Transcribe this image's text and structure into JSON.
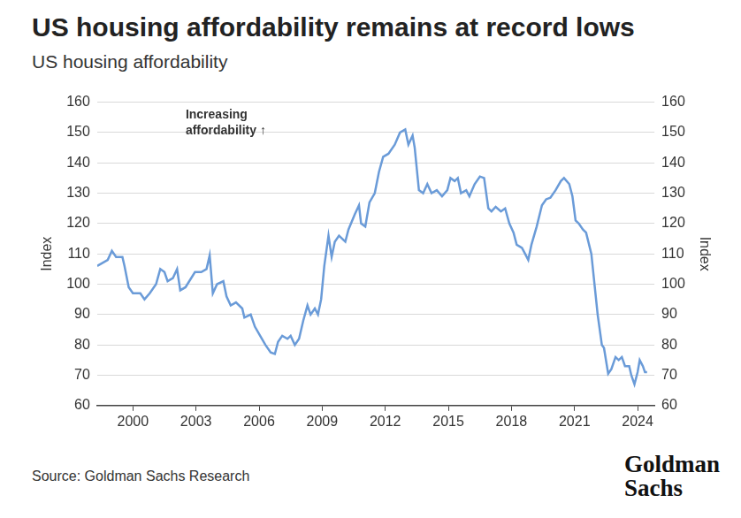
{
  "chart_data": {
    "type": "line",
    "title": "US housing affordability remains at record lows",
    "subtitle": "US housing affordability",
    "annotation": [
      "Increasing",
      "affordability ↑"
    ],
    "source": "Source: Goldman Sachs Research",
    "logo": [
      "Goldman",
      "Sachs"
    ],
    "y_label": "Index",
    "y2_label": "Index",
    "color": "#6a9bd8",
    "grid": "y",
    "x": [
      1998.3,
      1998.8,
      1999.0,
      1999.2,
      1999.5,
      1999.6,
      1999.8,
      2000.0,
      2000.35,
      2000.55,
      2000.8,
      2001.1,
      2001.3,
      2001.5,
      2001.65,
      2001.9,
      2002.1,
      2002.25,
      2002.5,
      2002.95,
      2003.25,
      2003.5,
      2003.65,
      2003.8,
      2004.0,
      2004.3,
      2004.45,
      2004.65,
      2004.9,
      2005.2,
      2005.3,
      2005.6,
      2005.8,
      2006.05,
      2006.3,
      2006.55,
      2006.75,
      2006.9,
      2007.1,
      2007.35,
      2007.5,
      2007.7,
      2007.9,
      2008.1,
      2008.3,
      2008.45,
      2008.65,
      2008.8,
      2008.95,
      2009.1,
      2009.3,
      2009.45,
      2009.6,
      2009.8,
      2010.1,
      2010.25,
      2010.55,
      2010.75,
      2010.85,
      2011.05,
      2011.25,
      2011.5,
      2011.7,
      2011.9,
      2012.15,
      2012.45,
      2012.7,
      2012.95,
      2013.1,
      2013.3,
      2013.4,
      2013.6,
      2013.8,
      2014.0,
      2014.2,
      2014.45,
      2014.7,
      2014.95,
      2015.1,
      2015.3,
      2015.45,
      2015.6,
      2015.85,
      2016.0,
      2016.25,
      2016.5,
      2016.7,
      2016.9,
      2017.05,
      2017.25,
      2017.5,
      2017.7,
      2017.9,
      2018.1,
      2018.25,
      2018.5,
      2018.65,
      2018.8,
      2018.95,
      2019.2,
      2019.45,
      2019.65,
      2019.85,
      2020.1,
      2020.35,
      2020.5,
      2020.75,
      2020.9,
      2021.05,
      2021.2,
      2021.4,
      2021.55,
      2021.8,
      2021.95,
      2022.1,
      2022.3,
      2022.4,
      2022.6,
      2022.75,
      2022.95,
      2023.1,
      2023.25,
      2023.4,
      2023.6,
      2023.7,
      2023.85,
      2024.0,
      2024.1,
      2024.25,
      2024.35,
      2024.45
    ],
    "values": [
      106,
      108,
      111,
      109,
      109,
      106,
      99,
      97,
      97,
      95,
      97,
      100,
      105,
      104,
      101,
      102,
      105,
      98,
      99,
      104,
      104,
      105,
      109.5,
      97,
      100,
      101,
      96,
      93,
      94,
      92,
      89,
      90,
      86,
      83,
      80,
      77.5,
      77,
      81,
      83,
      82,
      83,
      80,
      82,
      88,
      93,
      90,
      92,
      90,
      95,
      106,
      116,
      109,
      114,
      116,
      114,
      118,
      123,
      126,
      120,
      119,
      127,
      130,
      137,
      142,
      143,
      146,
      150,
      151,
      146,
      149,
      145,
      131,
      130,
      133,
      130,
      131,
      129,
      131,
      135,
      134,
      135,
      130,
      131,
      129,
      133,
      135.5,
      135,
      125,
      124,
      125.5,
      124,
      125,
      120,
      117,
      113,
      112,
      110,
      108,
      113,
      119,
      126,
      128,
      128.5,
      131,
      134,
      135,
      133,
      129,
      121,
      120,
      118,
      117,
      110,
      100,
      90,
      80,
      79,
      70.5,
      72,
      76,
      75,
      76,
      73,
      73,
      70,
      67,
      71,
      75,
      73,
      71,
      71
    ],
    "xlim": [
      1998.3,
      2024.8
    ],
    "xticks": [
      2000,
      2003,
      2006,
      2009,
      2012,
      2015,
      2018,
      2021,
      2024
    ],
    "ylim": [
      60,
      160
    ],
    "yticks": [
      60,
      70,
      80,
      90,
      100,
      110,
      120,
      130,
      140,
      150,
      160
    ],
    "y2lim": [
      60,
      160
    ],
    "y2ticks": [
      60,
      70,
      80,
      90,
      100,
      110,
      120,
      130,
      140,
      150,
      160
    ]
  }
}
